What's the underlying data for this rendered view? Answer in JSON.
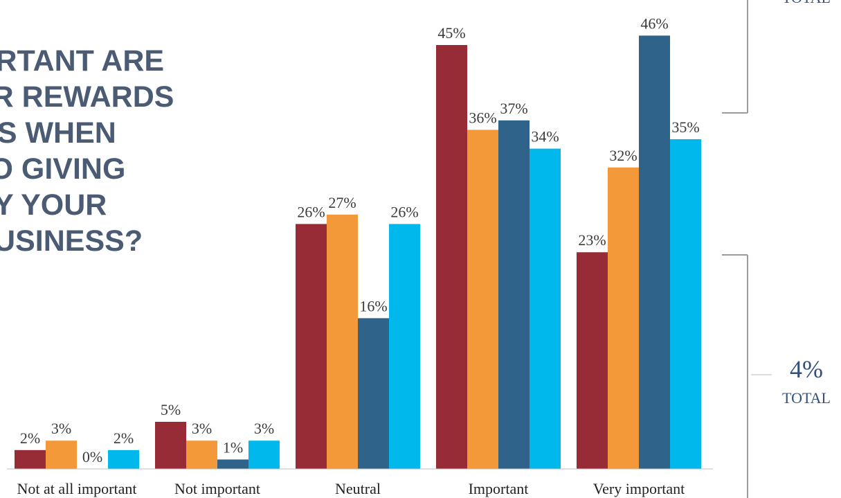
{
  "title": "ORTANT ARE\nER REWARDS\nMS WHEN\n TO GIVING\nNY YOUR\nBUSINESS?",
  "side_panel": {
    "top_label": "TOTAL",
    "bottom_value": "4%",
    "bottom_label": "TOTAL"
  },
  "colors": {
    "series": [
      "#982c36",
      "#f3993a",
      "#30638a",
      "#00b8ec"
    ],
    "axis": "#bdbdbd",
    "bracket": "#9a9a9a",
    "accent_text": "#34507a"
  },
  "chart_data": {
    "type": "bar",
    "categories": [
      "Not at all important",
      "Not important",
      "Neutral",
      "Important",
      "Very important"
    ],
    "series": [
      {
        "values": [
          2,
          5,
          26,
          45,
          23
        ]
      },
      {
        "values": [
          3,
          3,
          27,
          36,
          32
        ]
      },
      {
        "values": [
          0,
          1,
          16,
          37,
          46
        ]
      },
      {
        "values": [
          2,
          3,
          26,
          34,
          35
        ]
      }
    ],
    "value_suffix": "%",
    "ylim": [
      0,
      50
    ],
    "grid": false,
    "legend": "none"
  }
}
